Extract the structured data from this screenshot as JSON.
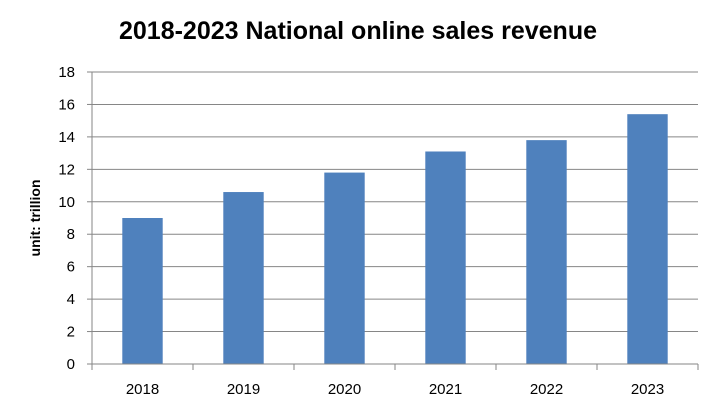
{
  "chart_data": {
    "type": "bar",
    "title": "2018-2023 National online sales  revenue",
    "xlabel": "",
    "ylabel": "unit: trillion",
    "categories": [
      "2018",
      "2019",
      "2020",
      "2021",
      "2022",
      "2023"
    ],
    "series": [
      {
        "values": [
          9.0,
          10.6,
          11.8,
          13.1,
          13.8,
          15.4
        ]
      }
    ],
    "ylim": [
      0,
      18
    ],
    "yticks": [
      0,
      2,
      4,
      6,
      8,
      10,
      12,
      14,
      16,
      18
    ],
    "grid": true,
    "legend": "none",
    "colors": {
      "bar": "#4f81bd",
      "grid": "#868686",
      "axis": "#868686"
    }
  }
}
